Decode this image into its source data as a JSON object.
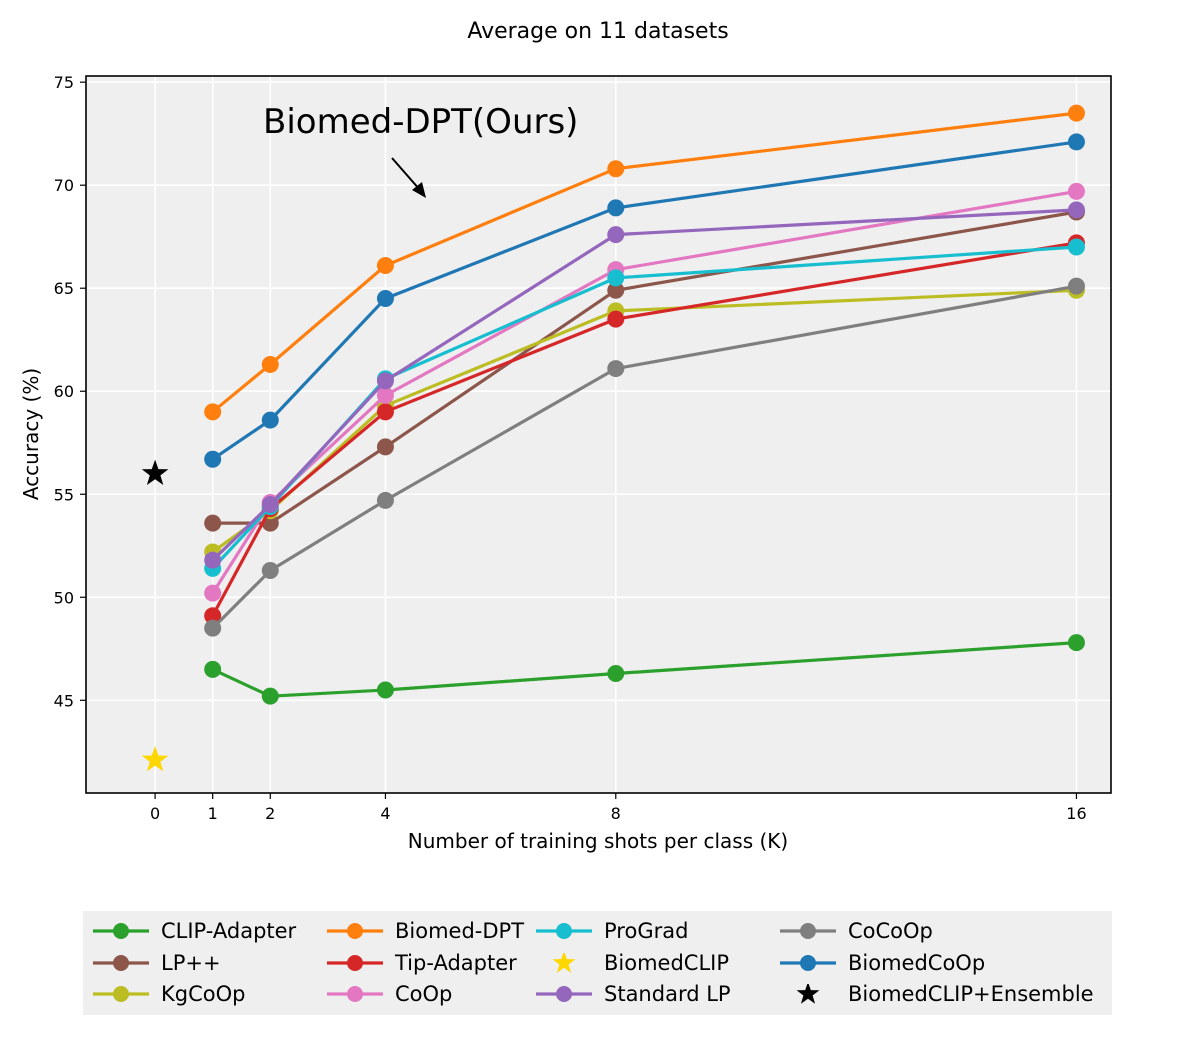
{
  "chart_data": {
    "type": "line",
    "title": "Average on 11 datasets",
    "xlabel": "Number of training shots per class (K)",
    "ylabel": "Accuracy (%)",
    "xlim": [
      -1.2,
      16.6
    ],
    "ylim": [
      40.5,
      75.3
    ],
    "xticks": [
      0,
      1,
      2,
      4,
      8,
      16
    ],
    "yticks": [
      45,
      50,
      55,
      60,
      65,
      70,
      75
    ],
    "grid": true,
    "background": "#efefef",
    "annotation": "Biomed-DPT(Ours)",
    "legend_position": "bottom",
    "series": [
      {
        "name": "CLIP-Adapter",
        "color": "#2ca02c",
        "marker": "circle",
        "x": [
          1,
          2,
          4,
          8,
          16
        ],
        "values": [
          46.5,
          45.2,
          45.5,
          46.3,
          47.8
        ]
      },
      {
        "name": "LP++",
        "color": "#8c564b",
        "marker": "circle",
        "x": [
          1,
          2,
          4,
          8,
          16
        ],
        "values": [
          53.6,
          53.6,
          57.3,
          64.9,
          68.7
        ]
      },
      {
        "name": "KgCoOp",
        "color": "#bcbd22",
        "marker": "circle",
        "x": [
          1,
          2,
          4,
          8,
          16
        ],
        "values": [
          52.2,
          54.2,
          59.3,
          63.9,
          64.9
        ]
      },
      {
        "name": "Biomed-DPT",
        "color": "#ff7f0e",
        "marker": "circle",
        "x": [
          1,
          2,
          4,
          8,
          16
        ],
        "values": [
          59.0,
          61.3,
          66.1,
          70.8,
          73.5
        ]
      },
      {
        "name": "Tip-Adapter",
        "color": "#d62728",
        "marker": "circle",
        "x": [
          1,
          2,
          4,
          8,
          16
        ],
        "values": [
          49.1,
          54.3,
          59.0,
          63.5,
          67.2
        ]
      },
      {
        "name": "CoOp",
        "color": "#e377c2",
        "marker": "circle",
        "x": [
          1,
          2,
          4,
          8,
          16
        ],
        "values": [
          50.2,
          54.6,
          59.8,
          65.9,
          69.7
        ]
      },
      {
        "name": "ProGrad",
        "color": "#17becf",
        "marker": "circle",
        "x": [
          1,
          2,
          4,
          8,
          16
        ],
        "values": [
          51.4,
          54.4,
          60.6,
          65.5,
          67.0
        ]
      },
      {
        "name": "BiomedCLIP",
        "color": "#ffd700",
        "marker": "star",
        "x": [
          0
        ],
        "values": [
          42.1
        ]
      },
      {
        "name": "Standard LP",
        "color": "#9467bd",
        "marker": "circle",
        "x": [
          1,
          2,
          4,
          8,
          16
        ],
        "values": [
          51.8,
          54.5,
          60.5,
          67.6,
          68.8
        ]
      },
      {
        "name": "CoCoOp",
        "color": "#7f7f7f",
        "marker": "circle",
        "x": [
          1,
          2,
          4,
          8,
          16
        ],
        "values": [
          48.5,
          51.3,
          54.7,
          61.1,
          65.1
        ]
      },
      {
        "name": "BiomedCoOp",
        "color": "#1f77b4",
        "marker": "circle",
        "x": [
          1,
          2,
          4,
          8,
          16
        ],
        "values": [
          56.7,
          58.6,
          64.5,
          68.9,
          72.1
        ]
      },
      {
        "name": "BiomedCLIP+Ensemble",
        "color": "#000000",
        "marker": "star",
        "x": [
          0
        ],
        "values": [
          56.0
        ]
      }
    ]
  }
}
